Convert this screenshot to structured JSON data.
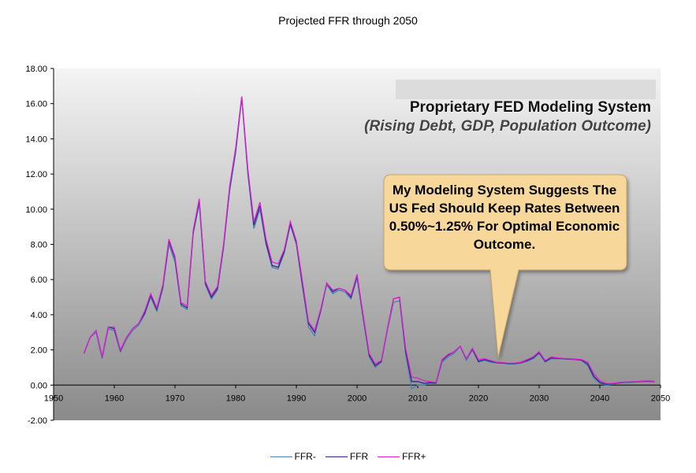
{
  "chart_data": {
    "type": "line",
    "title": "Projected FFR through 2050",
    "xlabel": "",
    "ylabel": "",
    "xlim": [
      1950,
      2050
    ],
    "ylim": [
      -2,
      18
    ],
    "x_ticks": [
      1950,
      1960,
      1970,
      1980,
      1990,
      2000,
      2010,
      2020,
      2030,
      2040,
      2050
    ],
    "y_ticks": [
      "-2.00",
      "0.00",
      "2.00",
      "4.00",
      "6.00",
      "8.00",
      "10.00",
      "12.00",
      "14.00",
      "16.00",
      "18.00"
    ],
    "grid": false,
    "legend_position": "bottom",
    "series": [
      {
        "name": "FFR-",
        "color": "#4a7fb0",
        "x": [
          1955,
          1956,
          1957,
          1958,
          1959,
          1960,
          1961,
          1962,
          1963,
          1964,
          1965,
          1966,
          1967,
          1968,
          1969,
          1970,
          1971,
          1972,
          1973,
          1974,
          1975,
          1976,
          1977,
          1978,
          1979,
          1980,
          1981,
          1982,
          1983,
          1984,
          1985,
          1986,
          1987,
          1988,
          1989,
          1990,
          1991,
          1992,
          1993,
          1994,
          1995,
          1996,
          1997,
          1998,
          1999,
          2000,
          2001,
          2002,
          2003,
          2004,
          2005,
          2006,
          2007,
          2008,
          2009,
          2010,
          2011,
          2012,
          2013,
          2014,
          2015,
          2016,
          2017,
          2018,
          2019,
          2020,
          2021,
          2022,
          2023,
          2024,
          2025,
          2026,
          2027,
          2028,
          2029,
          2030,
          2031,
          2032,
          2033,
          2034,
          2035,
          2036,
          2037,
          2038,
          2039,
          2040,
          2041,
          2042,
          2043,
          2044,
          2045,
          2046,
          2047,
          2048,
          2049
        ],
        "y": [
          1.8,
          2.7,
          3.0,
          1.5,
          3.2,
          3.1,
          1.9,
          2.6,
          3.1,
          3.4,
          4.0,
          5.0,
          4.2,
          5.5,
          8.0,
          7.0,
          4.5,
          4.3,
          8.6,
          10.3,
          5.7,
          4.9,
          5.4,
          7.8,
          11.0,
          13.2,
          16.3,
          12.0,
          8.9,
          10.0,
          8.0,
          6.7,
          6.6,
          7.5,
          9.1,
          8.0,
          5.6,
          3.3,
          2.8,
          4.2,
          5.7,
          5.2,
          5.4,
          5.3,
          4.9,
          6.1,
          3.8,
          1.6,
          1.0,
          1.3,
          3.1,
          4.7,
          4.8,
          1.8,
          -0.2,
          0.0,
          0.0,
          0.1,
          0.1,
          1.3,
          1.6,
          1.8,
          2.2,
          1.4,
          2.0,
          1.3,
          1.4,
          1.3,
          1.25,
          1.25,
          1.2,
          1.2,
          1.25,
          1.35,
          1.5,
          1.8,
          1.3,
          1.5,
          1.5,
          1.5,
          1.45,
          1.45,
          1.4,
          1.1,
          0.4,
          0.1,
          0.0,
          0.05,
          0.1,
          0.15,
          0.15,
          0.18,
          0.2,
          0.2,
          0.2
        ]
      },
      {
        "name": "FFR",
        "color": "#2a2a8a",
        "x": [
          1955,
          1956,
          1957,
          1958,
          1959,
          1960,
          1961,
          1962,
          1963,
          1964,
          1965,
          1966,
          1967,
          1968,
          1969,
          1970,
          1971,
          1972,
          1973,
          1974,
          1975,
          1976,
          1977,
          1978,
          1979,
          1980,
          1981,
          1982,
          1983,
          1984,
          1985,
          1986,
          1987,
          1988,
          1989,
          1990,
          1991,
          1992,
          1993,
          1994,
          1995,
          1996,
          1997,
          1998,
          1999,
          2000,
          2001,
          2002,
          2003,
          2004,
          2005,
          2006,
          2007,
          2008,
          2009,
          2010,
          2011,
          2012,
          2013,
          2014,
          2015,
          2016,
          2017,
          2018,
          2019,
          2020,
          2021,
          2022,
          2023,
          2024,
          2025,
          2026,
          2027,
          2028,
          2029,
          2030,
          2031,
          2032,
          2033,
          2034,
          2035,
          2036,
          2037,
          2038,
          2039,
          2040,
          2041,
          2042,
          2043,
          2044,
          2045,
          2046,
          2047,
          2048,
          2049
        ],
        "y": [
          1.8,
          2.7,
          3.1,
          1.6,
          3.3,
          3.2,
          1.95,
          2.7,
          3.2,
          3.5,
          4.1,
          5.1,
          4.3,
          5.6,
          8.2,
          7.2,
          4.6,
          4.4,
          8.7,
          10.5,
          5.8,
          5.0,
          5.5,
          7.9,
          11.2,
          13.4,
          16.4,
          12.2,
          9.1,
          10.2,
          8.1,
          6.8,
          6.7,
          7.6,
          9.2,
          8.1,
          5.7,
          3.5,
          3.0,
          4.2,
          5.8,
          5.3,
          5.5,
          5.4,
          5.0,
          6.2,
          3.9,
          1.7,
          1.1,
          1.35,
          3.2,
          4.9,
          5.0,
          1.9,
          0.2,
          0.2,
          0.1,
          0.14,
          0.11,
          1.4,
          1.7,
          1.9,
          2.2,
          1.5,
          2.05,
          1.35,
          1.45,
          1.35,
          1.28,
          1.25,
          1.22,
          1.22,
          1.28,
          1.4,
          1.55,
          1.85,
          1.35,
          1.55,
          1.52,
          1.5,
          1.48,
          1.46,
          1.42,
          1.2,
          0.5,
          0.15,
          0.05,
          0.08,
          0.12,
          0.16,
          0.17,
          0.19,
          0.21,
          0.22,
          0.2
        ]
      },
      {
        "name": "FFR+",
        "color": "#e020d0",
        "x": [
          1955,
          1956,
          1957,
          1958,
          1959,
          1960,
          1961,
          1962,
          1963,
          1964,
          1965,
          1966,
          1967,
          1968,
          1969,
          1970,
          1971,
          1972,
          1973,
          1974,
          1975,
          1976,
          1977,
          1978,
          1979,
          1980,
          1981,
          1982,
          1983,
          1984,
          1985,
          1986,
          1987,
          1988,
          1989,
          1990,
          1991,
          1992,
          1993,
          1994,
          1995,
          1996,
          1997,
          1998,
          1999,
          2000,
          2001,
          2002,
          2003,
          2004,
          2005,
          2006,
          2007,
          2008,
          2009,
          2010,
          2011,
          2012,
          2013,
          2014,
          2015,
          2016,
          2017,
          2018,
          2019,
          2020,
          2021,
          2022,
          2023,
          2024,
          2025,
          2026,
          2027,
          2028,
          2029,
          2030,
          2031,
          2032,
          2033,
          2034,
          2035,
          2036,
          2037,
          2038,
          2039,
          2040,
          2041,
          2042,
          2043,
          2044,
          2045,
          2046,
          2047,
          2048,
          2049
        ],
        "y": [
          1.8,
          2.7,
          3.1,
          1.6,
          3.3,
          3.3,
          2.0,
          2.7,
          3.2,
          3.5,
          4.2,
          5.2,
          4.4,
          5.7,
          8.3,
          7.3,
          4.7,
          4.5,
          8.8,
          10.6,
          5.9,
          5.1,
          5.6,
          8.0,
          11.3,
          13.5,
          16.4,
          12.3,
          9.3,
          10.4,
          8.3,
          7.0,
          6.9,
          7.7,
          9.3,
          8.2,
          5.9,
          3.6,
          3.1,
          4.3,
          5.8,
          5.4,
          5.5,
          5.4,
          5.1,
          6.3,
          4.0,
          1.8,
          1.2,
          1.4,
          3.2,
          4.9,
          5.0,
          2.1,
          0.45,
          0.4,
          0.25,
          0.2,
          0.15,
          1.45,
          1.75,
          1.9,
          2.2,
          1.5,
          2.1,
          1.45,
          1.5,
          1.4,
          1.3,
          1.28,
          1.25,
          1.25,
          1.3,
          1.45,
          1.6,
          1.9,
          1.4,
          1.6,
          1.55,
          1.52,
          1.5,
          1.48,
          1.45,
          1.3,
          0.65,
          0.25,
          0.1,
          0.1,
          0.14,
          0.18,
          0.19,
          0.2,
          0.23,
          0.24,
          0.22
        ]
      }
    ]
  },
  "annotations": {
    "proprietary_title": "Proprietary FED Modeling System",
    "proprietary_subtitle": "(Rising Debt, GDP, Population Outcome)",
    "callout_text": "My Modeling System Suggests The US Fed Should Keep Rates Between 0.50%~1.25% For Optimal Economic Outcome.",
    "callout_color": "#f8d79a"
  },
  "colors": {
    "plot_gradient_top": "#f4f4f4",
    "plot_gradient_bottom": "#8a8a8a"
  }
}
